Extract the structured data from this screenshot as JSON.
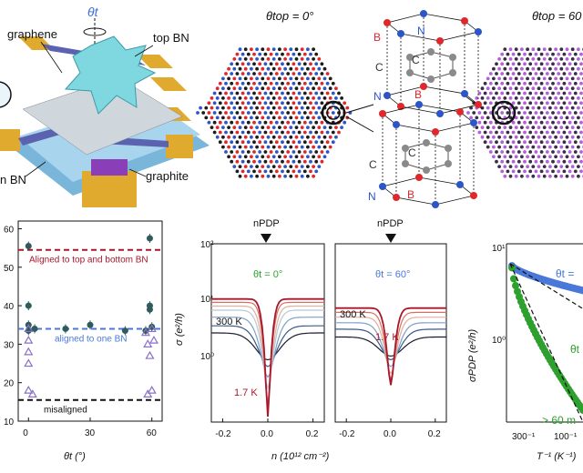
{
  "colors": {
    "dark_red": "#a8172c",
    "blue": "#4a78d8",
    "green": "#2ea02e",
    "purple": "#8a6fc8",
    "teal": "#2f5a5e",
    "gold": "#e0aa2e",
    "violet_lattice": "#b460d8",
    "atom_red": "#e0272b",
    "atom_blue": "#2b55c8",
    "atom_gray": "#8a8a8a"
  },
  "device": {
    "theta_label": "θt",
    "labels": {
      "graphene": "graphene",
      "top_bn": "top BN",
      "bottom_bn": "n BN",
      "graphite": "graphite"
    }
  },
  "lattice": {
    "left_title": "θtop = 0°",
    "right_title": "θtop = 60",
    "atoms_top": [
      "B",
      "N",
      "C",
      "C",
      "N",
      "B"
    ],
    "atoms_bottom": [
      "C",
      "C",
      "N",
      "B"
    ]
  },
  "panel_b": {
    "ticks_y": [
      "60",
      "50",
      "40",
      "30",
      "20",
      "10"
    ],
    "ticks_x": [
      "0",
      "30",
      "60"
    ],
    "xlabel": "θt (°)",
    "line_labels": {
      "top": "Aligned to top and bottom BN",
      "one": "aligned to one BN",
      "mis": "misaligned"
    }
  },
  "panel_c": {
    "npdp_label": "nPDP",
    "ylabel": "σ (e²/h)",
    "xlabel": "n (10¹² cm⁻²)",
    "ticks_y": [
      "10²",
      "10¹",
      "10⁰"
    ],
    "ticks_x": [
      "-0.2",
      "0.0",
      "0.2"
    ],
    "left_theta": "θt = 0°",
    "right_theta": "θt = 60°",
    "label_300k": "300 K",
    "label_17k": "1.7 K"
  },
  "panel_d": {
    "ylabel": "σPDP (e²/h)",
    "xlabel": "T⁻¹ (K⁻¹)",
    "ticks_y": [
      "10¹",
      "10⁰"
    ],
    "ticks_x": [
      "300⁻¹",
      "100⁻¹"
    ],
    "theta_blue": "θt =",
    "theta_green": "θt",
    "green_label": "> 60 m"
  },
  "chart_data": [
    {
      "type": "scatter",
      "xlabel": "θt (°)",
      "xlim": [
        -5,
        65
      ],
      "ylim": [
        10,
        62
      ],
      "series": [
        {
          "name": "filled circles",
          "points": [
            [
              0,
              55.5
            ],
            [
              0,
              40
            ],
            [
              0,
              35
            ],
            [
              0,
              33.5
            ],
            [
              3,
              34
            ],
            [
              18,
              34
            ],
            [
              30,
              35
            ],
            [
              47,
              33.5
            ],
            [
              57,
              33.5
            ],
            [
              59,
              57.5
            ],
            [
              59,
              40
            ],
            [
              59,
              39
            ],
            [
              60,
              34.5
            ]
          ]
        },
        {
          "name": "open triangles",
          "points": [
            [
              0,
              34
            ],
            [
              0,
              31
            ],
            [
              0,
              28
            ],
            [
              0,
              25
            ],
            [
              0,
              18
            ],
            [
              2,
              17
            ],
            [
              57,
              33
            ],
            [
              58,
              30
            ],
            [
              59,
              27
            ],
            [
              60,
              34
            ],
            [
              61,
              31
            ],
            [
              60,
              18
            ],
            [
              58,
              17
            ]
          ]
        }
      ],
      "hlines": [
        {
          "label": "Aligned to top and bottom BN",
          "y": 54.5
        },
        {
          "label": "aligned to one BN",
          "y": 34
        },
        {
          "label": "misaligned",
          "y": 15.5
        }
      ]
    },
    {
      "type": "line",
      "xlabel": "n (10¹² cm⁻²)",
      "ylabel": "σ (e²/h)",
      "yscale": "log",
      "xlim": [
        -0.25,
        0.25
      ],
      "ylim": [
        1,
        100
      ],
      "panels": [
        {
          "label": "θt = 0°",
          "curves": [
            {
              "T": "300 K",
              "min": 5,
              "edge": 10,
              "width": 0.12
            },
            {
              "min": 4.2,
              "edge": 12,
              "width": 0.1
            },
            {
              "min": 3.2,
              "edge": 15,
              "width": 0.085
            },
            {
              "min": 2.4,
              "edge": 18,
              "width": 0.07
            },
            {
              "min": 1.7,
              "edge": 20,
              "width": 0.06
            },
            {
              "min": 1.35,
              "edge": 22,
              "width": 0.05
            },
            {
              "T": "1.7 K",
              "min": 1.15,
              "edge": 24,
              "width": 0.045
            }
          ]
        },
        {
          "label": "θt = 60°",
          "curves": [
            {
              "T": "300 K",
              "min": 5.5,
              "edge": 9,
              "width": 0.12
            },
            {
              "min": 5,
              "edge": 11,
              "width": 0.1
            },
            {
              "min": 4.2,
              "edge": 13,
              "width": 0.085
            },
            {
              "min": 3.5,
              "edge": 15,
              "width": 0.07
            },
            {
              "min": 3,
              "edge": 17,
              "width": 0.06
            },
            {
              "T": "1.7 K",
              "min": 2.6,
              "edge": 19,
              "width": 0.05
            }
          ]
        }
      ]
    },
    {
      "type": "scatter",
      "xlabel": "T⁻¹ (K⁻¹)",
      "ylabel": "σPDP (e²/h)",
      "yscale": "log",
      "series": [
        {
          "name": "θt =",
          "color": "blue",
          "start": 8.5,
          "end": 4.2
        },
        {
          "name": "θt",
          "color": "green",
          "start": 8.0,
          "end": 0.14
        }
      ]
    }
  ]
}
